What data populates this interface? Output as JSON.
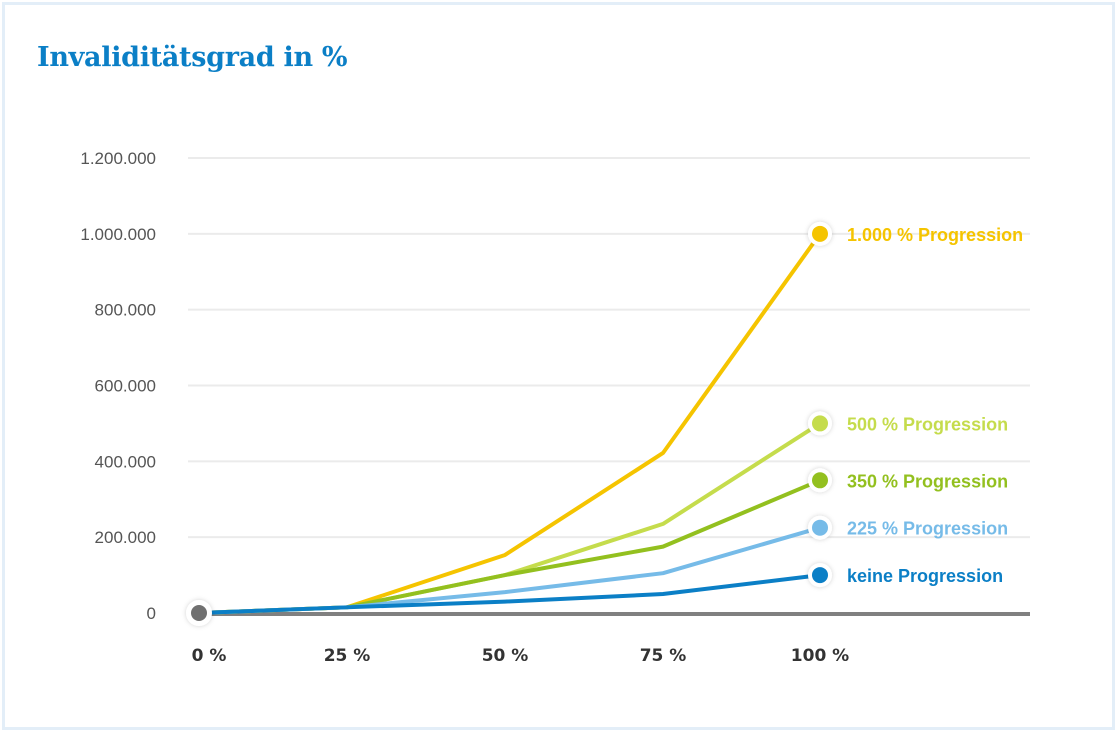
{
  "chart_data": {
    "type": "line",
    "title": "Invaliditätsgrad in %",
    "xlabel": "",
    "ylabel": "",
    "x": [
      "0 %",
      "25 %",
      "50 %",
      "75 %",
      "100 %"
    ],
    "ylim": [
      0,
      1200000
    ],
    "yticks": [
      0,
      200000,
      400000,
      600000,
      800000,
      1000000,
      1200000
    ],
    "ytick_labels": [
      "0",
      "200.000",
      "400.000",
      "600.000",
      "800.000",
      "1.000.000",
      "1.200.000"
    ],
    "grid": true,
    "legend": "inline-right",
    "series": [
      {
        "name": "1.000 % Progression",
        "color": "#f5c400",
        "values": [
          0,
          15000,
          153000,
          422000,
          1000000
        ]
      },
      {
        "name": "500 % Progression",
        "color": "#c5dc4c",
        "values": [
          0,
          15000,
          100000,
          235000,
          500000
        ]
      },
      {
        "name": "350 % Progression",
        "color": "#93c01f",
        "values": [
          0,
          15000,
          100000,
          175000,
          350000
        ]
      },
      {
        "name": "225 % Progression",
        "color": "#76bbe8",
        "values": [
          0,
          15000,
          55000,
          105000,
          225000
        ]
      },
      {
        "name": "keine Progression",
        "color": "#0b7fc6",
        "values": [
          0,
          15000,
          30000,
          50000,
          100000
        ]
      }
    ],
    "origin_marker_color": "#707070",
    "baseline_color": "#808080"
  }
}
